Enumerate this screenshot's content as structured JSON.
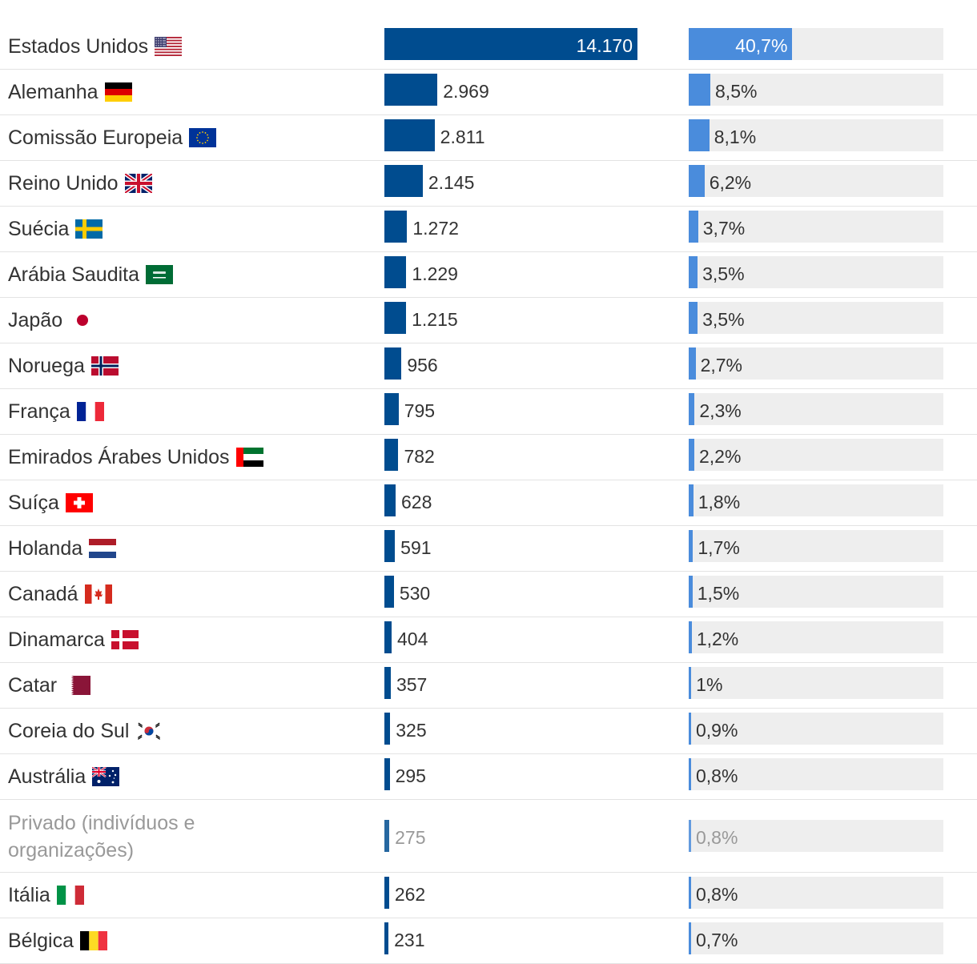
{
  "chart_data": {
    "type": "bar",
    "title": "",
    "xlabel": "",
    "ylabel": "",
    "colors": {
      "amount": "#004c8f",
      "share": "#4a8cdc",
      "track": "#eeeeee"
    },
    "max_amount": 14170,
    "max_share": 100,
    "rows": [
      {
        "label": "Estados Unidos",
        "flag": "us-flag",
        "amount": 14170,
        "amount_label": "14.170",
        "share": 40.7,
        "share_label": "40,7%"
      },
      {
        "label": "Alemanha",
        "flag": "germany-flag",
        "amount": 2969,
        "amount_label": "2.969",
        "share": 8.5,
        "share_label": "8,5%"
      },
      {
        "label": "Comissão Europeia",
        "flag": "eu-flag",
        "amount": 2811,
        "amount_label": "2.811",
        "share": 8.1,
        "share_label": "8,1%"
      },
      {
        "label": "Reino Unido",
        "flag": "uk-flag",
        "amount": 2145,
        "amount_label": "2.145",
        "share": 6.2,
        "share_label": "6,2%"
      },
      {
        "label": "Suécia",
        "flag": "sweden-flag",
        "amount": 1272,
        "amount_label": "1.272",
        "share": 3.7,
        "share_label": "3,7%"
      },
      {
        "label": "Arábia Saudita",
        "flag": "saudi-arabia-flag",
        "amount": 1229,
        "amount_label": "1.229",
        "share": 3.5,
        "share_label": "3,5%"
      },
      {
        "label": "Japão",
        "flag": "japan-flag",
        "amount": 1215,
        "amount_label": "1.215",
        "share": 3.5,
        "share_label": "3,5%"
      },
      {
        "label": "Noruega",
        "flag": "norway-flag",
        "amount": 956,
        "amount_label": "956",
        "share": 2.7,
        "share_label": "2,7%"
      },
      {
        "label": "França",
        "flag": "france-flag",
        "amount": 795,
        "amount_label": "795",
        "share": 2.3,
        "share_label": "2,3%"
      },
      {
        "label": "Emirados Árabes Unidos",
        "flag": "uae-flag",
        "amount": 782,
        "amount_label": "782",
        "share": 2.2,
        "share_label": "2,2%"
      },
      {
        "label": "Suíça",
        "flag": "switzerland-flag",
        "amount": 628,
        "amount_label": "628",
        "share": 1.8,
        "share_label": "1,8%"
      },
      {
        "label": "Holanda",
        "flag": "netherlands-flag",
        "amount": 591,
        "amount_label": "591",
        "share": 1.7,
        "share_label": "1,7%"
      },
      {
        "label": "Canadá",
        "flag": "canada-flag",
        "amount": 530,
        "amount_label": "530",
        "share": 1.5,
        "share_label": "1,5%"
      },
      {
        "label": "Dinamarca",
        "flag": "denmark-flag",
        "amount": 404,
        "amount_label": "404",
        "share": 1.2,
        "share_label": "1,2%"
      },
      {
        "label": "Catar",
        "flag": "qatar-flag",
        "amount": 357,
        "amount_label": "357",
        "share": 1.0,
        "share_label": "1%"
      },
      {
        "label": "Coreia do Sul",
        "flag": "south-korea-flag",
        "amount": 325,
        "amount_label": "325",
        "share": 0.9,
        "share_label": "0,9%"
      },
      {
        "label": "Austrália",
        "flag": "australia-flag",
        "amount": 295,
        "amount_label": "295",
        "share": 0.8,
        "share_label": "0,8%"
      },
      {
        "label": "Privado (indivíduos e organizações)",
        "flag": "",
        "muted": true,
        "amount": 275,
        "amount_label": "275",
        "share": 0.8,
        "share_label": "0,8%"
      },
      {
        "label": "Itália",
        "flag": "italy-flag",
        "amount": 262,
        "amount_label": "262",
        "share": 0.8,
        "share_label": "0,8%"
      },
      {
        "label": "Bélgica",
        "flag": "belgium-flag",
        "amount": 231,
        "amount_label": "231",
        "share": 0.7,
        "share_label": "0,7%"
      }
    ]
  }
}
